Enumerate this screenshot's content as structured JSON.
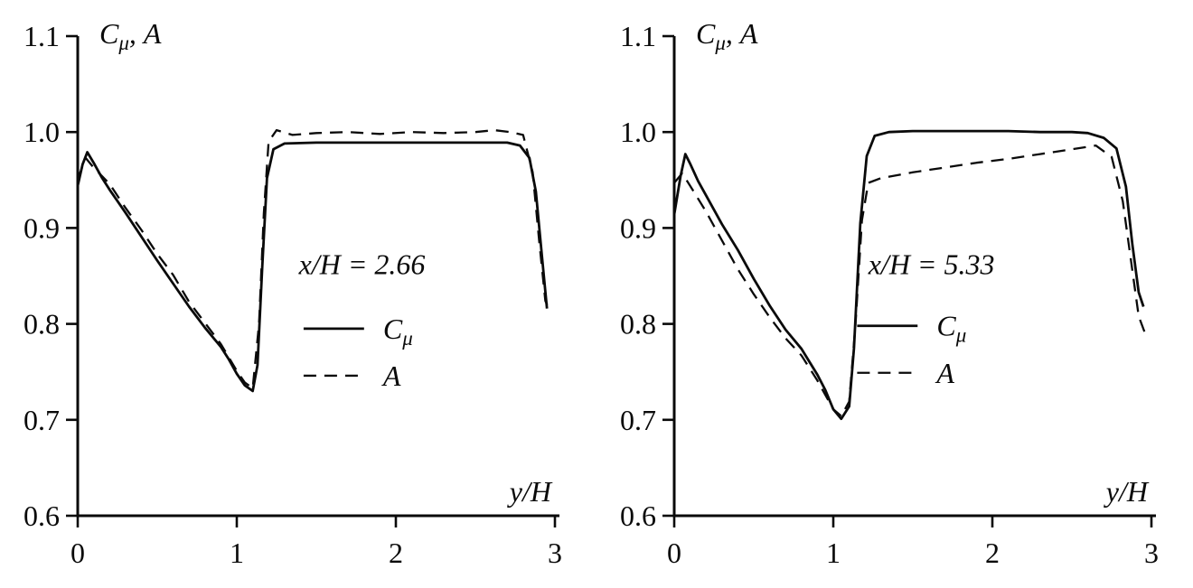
{
  "figure": {
    "background": "#ffffff",
    "line_color": "#0a0a0a"
  },
  "chart_data": [
    {
      "type": "line",
      "title": "",
      "ylabel": "C_{μ}, A",
      "xlabel": "y/H",
      "annotation": "x/H = 2.66",
      "xlim": [
        0,
        3
      ],
      "ylim": [
        0.6,
        1.1
      ],
      "xticks": [
        0,
        1,
        2,
        3
      ],
      "xtick_labels": [
        "0",
        "1",
        "2",
        "3"
      ],
      "yticks": [
        0.6,
        0.7,
        0.8,
        0.9,
        1.0,
        1.1
      ],
      "ytick_labels": [
        "0.6",
        "0.7",
        "0.8",
        "0.9",
        "1.0",
        "1.1"
      ],
      "grid": false,
      "legend_position": "inside-middle-right",
      "annotation_pos": {
        "x": 1.39,
        "y": 0.852
      },
      "legend_pos": {
        "x": 1.42,
        "y": 0.795,
        "row_gap": 0.049,
        "sample_len": 0.38,
        "label_dx": 0.5
      },
      "series": [
        {
          "name": "C_{μ}",
          "style": "solid",
          "points": [
            [
              0,
              0.944
            ],
            [
              0.03,
              0.966
            ],
            [
              0.06,
              0.979
            ],
            [
              0.1,
              0.968
            ],
            [
              0.15,
              0.953
            ],
            [
              0.2,
              0.94
            ],
            [
              0.3,
              0.916
            ],
            [
              0.4,
              0.891
            ],
            [
              0.5,
              0.866
            ],
            [
              0.6,
              0.842
            ],
            [
              0.7,
              0.818
            ],
            [
              0.8,
              0.796
            ],
            [
              0.9,
              0.776
            ],
            [
              0.95,
              0.763
            ],
            [
              1.0,
              0.748
            ],
            [
              1.05,
              0.736
            ],
            [
              1.1,
              0.73
            ],
            [
              1.13,
              0.757
            ],
            [
              1.16,
              0.86
            ],
            [
              1.19,
              0.952
            ],
            [
              1.23,
              0.982
            ],
            [
              1.3,
              0.988
            ],
            [
              1.5,
              0.989
            ],
            [
              1.7,
              0.989
            ],
            [
              1.9,
              0.989
            ],
            [
              2.1,
              0.989
            ],
            [
              2.3,
              0.989
            ],
            [
              2.5,
              0.989
            ],
            [
              2.7,
              0.989
            ],
            [
              2.78,
              0.986
            ],
            [
              2.84,
              0.973
            ],
            [
              2.88,
              0.938
            ],
            [
              2.92,
              0.868
            ],
            [
              2.95,
              0.816
            ]
          ]
        },
        {
          "name": "A",
          "style": "dashed",
          "points": [
            [
              0,
              0.951
            ],
            [
              0.05,
              0.973
            ],
            [
              0.1,
              0.963
            ],
            [
              0.2,
              0.946
            ],
            [
              0.3,
              0.921
            ],
            [
              0.4,
              0.898
            ],
            [
              0.5,
              0.873
            ],
            [
              0.6,
              0.851
            ],
            [
              0.7,
              0.823
            ],
            [
              0.8,
              0.801
            ],
            [
              0.9,
              0.779
            ],
            [
              1.0,
              0.751
            ],
            [
              1.05,
              0.739
            ],
            [
              1.1,
              0.733
            ],
            [
              1.14,
              0.8
            ],
            [
              1.17,
              0.915
            ],
            [
              1.2,
              0.99
            ],
            [
              1.25,
              1.002
            ],
            [
              1.35,
              0.997
            ],
            [
              1.5,
              0.999
            ],
            [
              1.7,
              1.0
            ],
            [
              1.9,
              0.998
            ],
            [
              2.1,
              1.0
            ],
            [
              2.3,
              0.999
            ],
            [
              2.5,
              1.0
            ],
            [
              2.62,
              1.002
            ],
            [
              2.72,
              1.0
            ],
            [
              2.8,
              0.997
            ],
            [
              2.86,
              0.958
            ],
            [
              2.9,
              0.888
            ],
            [
              2.94,
              0.824
            ],
            [
              2.97,
              0.813
            ]
          ]
        }
      ]
    },
    {
      "type": "line",
      "title": "",
      "ylabel": "C_{μ}, A",
      "xlabel": "y/H",
      "annotation": "x/H = 5.33",
      "xlim": [
        0,
        3
      ],
      "ylim": [
        0.6,
        1.1
      ],
      "xticks": [
        0,
        1,
        2,
        3
      ],
      "xtick_labels": [
        "0",
        "1",
        "2",
        "3"
      ],
      "yticks": [
        0.6,
        0.7,
        0.8,
        0.9,
        1.0,
        1.1
      ],
      "ytick_labels": [
        "0.6",
        "0.7",
        "0.8",
        "0.9",
        "1.0",
        "1.1"
      ],
      "grid": false,
      "legend_position": "inside-middle-right",
      "annotation_pos": {
        "x": 1.22,
        "y": 0.852
      },
      "legend_pos": {
        "x": 1.15,
        "y": 0.798,
        "row_gap": 0.049,
        "sample_len": 0.38,
        "label_dx": 0.5
      },
      "series": [
        {
          "name": "C_{μ}",
          "style": "solid",
          "points": [
            [
              0,
              0.914
            ],
            [
              0.04,
              0.954
            ],
            [
              0.07,
              0.977
            ],
            [
              0.1,
              0.967
            ],
            [
              0.15,
              0.949
            ],
            [
              0.2,
              0.934
            ],
            [
              0.3,
              0.904
            ],
            [
              0.4,
              0.877
            ],
            [
              0.5,
              0.847
            ],
            [
              0.6,
              0.819
            ],
            [
              0.7,
              0.794
            ],
            [
              0.8,
              0.774
            ],
            [
              0.9,
              0.747
            ],
            [
              0.95,
              0.731
            ],
            [
              1.0,
              0.711
            ],
            [
              1.05,
              0.701
            ],
            [
              1.1,
              0.714
            ],
            [
              1.13,
              0.775
            ],
            [
              1.17,
              0.905
            ],
            [
              1.21,
              0.975
            ],
            [
              1.26,
              0.996
            ],
            [
              1.35,
              1.0
            ],
            [
              1.5,
              1.001
            ],
            [
              1.7,
              1.001
            ],
            [
              1.9,
              1.001
            ],
            [
              2.1,
              1.001
            ],
            [
              2.3,
              1.0
            ],
            [
              2.5,
              1.0
            ],
            [
              2.6,
              0.999
            ],
            [
              2.7,
              0.994
            ],
            [
              2.78,
              0.983
            ],
            [
              2.84,
              0.943
            ],
            [
              2.88,
              0.883
            ],
            [
              2.92,
              0.833
            ],
            [
              2.95,
              0.818
            ]
          ]
        },
        {
          "name": "A",
          "style": "dashed",
          "points": [
            [
              0,
              0.947
            ],
            [
              0.05,
              0.957
            ],
            [
              0.1,
              0.944
            ],
            [
              0.2,
              0.917
            ],
            [
              0.3,
              0.887
            ],
            [
              0.4,
              0.857
            ],
            [
              0.5,
              0.831
            ],
            [
              0.6,
              0.807
            ],
            [
              0.7,
              0.785
            ],
            [
              0.8,
              0.767
            ],
            [
              0.9,
              0.741
            ],
            [
              1.0,
              0.711
            ],
            [
              1.05,
              0.704
            ],
            [
              1.1,
              0.719
            ],
            [
              1.14,
              0.8
            ],
            [
              1.18,
              0.908
            ],
            [
              1.22,
              0.947
            ],
            [
              1.3,
              0.952
            ],
            [
              1.5,
              0.958
            ],
            [
              1.7,
              0.963
            ],
            [
              1.9,
              0.968
            ],
            [
              2.1,
              0.972
            ],
            [
              2.3,
              0.977
            ],
            [
              2.5,
              0.982
            ],
            [
              2.65,
              0.986
            ],
            [
              2.75,
              0.974
            ],
            [
              2.82,
              0.928
            ],
            [
              2.87,
              0.868
            ],
            [
              2.92,
              0.808
            ],
            [
              2.96,
              0.79
            ]
          ]
        }
      ]
    }
  ]
}
